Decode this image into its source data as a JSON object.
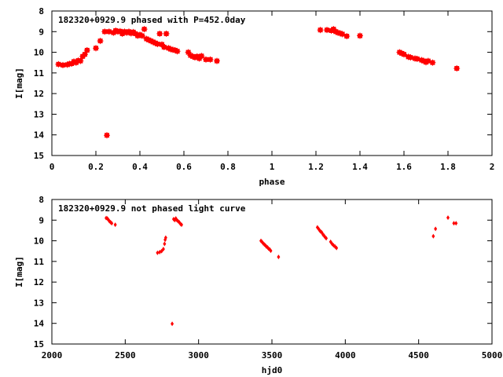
{
  "chart_data": [
    {
      "type": "scatter",
      "title": "182320+0929.9 phased with P=452.0day",
      "xlabel": "phase",
      "ylabel": "I[mag]",
      "xlim": [
        0,
        2
      ],
      "ylim": [
        15,
        8
      ],
      "y_inverted": true,
      "xticks": [
        "0",
        "0.2",
        "0.4",
        "0.6",
        "0.8",
        "1",
        "1.2",
        "1.4",
        "1.6",
        "1.8",
        "2"
      ],
      "yticks": [
        "8",
        "9",
        "10",
        "11",
        "12",
        "13",
        "14",
        "15"
      ],
      "grid": false,
      "marker_color": "#ff0000",
      "series": [
        {
          "points": [
            [
              0.03,
              10.58
            ],
            [
              0.05,
              10.62
            ],
            [
              0.07,
              10.6
            ],
            [
              0.08,
              10.56
            ],
            [
              0.09,
              10.55
            ],
            [
              0.1,
              10.45
            ],
            [
              0.11,
              10.5
            ],
            [
              0.12,
              10.4
            ],
            [
              0.13,
              10.42
            ],
            [
              0.14,
              10.2
            ],
            [
              0.15,
              10.1
            ],
            [
              0.16,
              9.9
            ],
            [
              0.2,
              9.8
            ],
            [
              0.22,
              9.45
            ],
            [
              0.24,
              9.0
            ],
            [
              0.25,
              14.02
            ],
            [
              0.26,
              9.0
            ],
            [
              0.28,
              9.05
            ],
            [
              0.29,
              8.95
            ],
            [
              0.3,
              9.0
            ],
            [
              0.31,
              8.98
            ],
            [
              0.32,
              9.1
            ],
            [
              0.33,
              9.0
            ],
            [
              0.34,
              9.05
            ],
            [
              0.35,
              9.0
            ],
            [
              0.36,
              9.08
            ],
            [
              0.37,
              9.02
            ],
            [
              0.38,
              9.1
            ],
            [
              0.39,
              9.2
            ],
            [
              0.4,
              9.15
            ],
            [
              0.41,
              9.2
            ],
            [
              0.42,
              8.88
            ],
            [
              0.43,
              9.35
            ],
            [
              0.44,
              9.4
            ],
            [
              0.45,
              9.45
            ],
            [
              0.46,
              9.5
            ],
            [
              0.47,
              9.55
            ],
            [
              0.48,
              9.6
            ],
            [
              0.49,
              9.1
            ],
            [
              0.5,
              9.62
            ],
            [
              0.51,
              9.75
            ],
            [
              0.52,
              9.1
            ],
            [
              0.53,
              9.8
            ],
            [
              0.54,
              9.85
            ],
            [
              0.55,
              9.88
            ],
            [
              0.56,
              9.9
            ],
            [
              0.57,
              9.95
            ],
            [
              0.62,
              10.0
            ],
            [
              0.63,
              10.15
            ],
            [
              0.64,
              10.2
            ],
            [
              0.65,
              10.25
            ],
            [
              0.66,
              10.2
            ],
            [
              0.67,
              10.3
            ],
            [
              0.68,
              10.18
            ],
            [
              0.7,
              10.35
            ],
            [
              0.72,
              10.35
            ],
            [
              0.75,
              10.42
            ],
            [
              1.22,
              8.92
            ],
            [
              1.25,
              8.92
            ],
            [
              1.27,
              8.95
            ],
            [
              1.28,
              8.88
            ],
            [
              1.29,
              9.0
            ],
            [
              1.3,
              9.05
            ],
            [
              1.31,
              9.08
            ],
            [
              1.32,
              9.12
            ],
            [
              1.34,
              9.22
            ],
            [
              1.4,
              9.2
            ],
            [
              1.58,
              10.0
            ],
            [
              1.59,
              10.05
            ],
            [
              1.6,
              10.1
            ],
            [
              1.62,
              10.22
            ],
            [
              1.63,
              10.25
            ],
            [
              1.65,
              10.3
            ],
            [
              1.66,
              10.32
            ],
            [
              1.68,
              10.38
            ],
            [
              1.69,
              10.42
            ],
            [
              1.7,
              10.48
            ],
            [
              1.71,
              10.42
            ],
            [
              1.73,
              10.5
            ],
            [
              1.84,
              10.78
            ]
          ]
        }
      ]
    },
    {
      "type": "scatter",
      "title": "182320+0929.9 not phased light curve",
      "xlabel": "hjd0",
      "ylabel": "I[mag]",
      "xlim": [
        2000,
        5000
      ],
      "ylim": [
        15,
        8
      ],
      "y_inverted": true,
      "xticks": [
        "2000",
        "2500",
        "3000",
        "3500",
        "4000",
        "4500",
        "5000"
      ],
      "yticks": [
        "8",
        "9",
        "10",
        "11",
        "12",
        "13",
        "14",
        "15"
      ],
      "grid": false,
      "marker_color": "#ff0000",
      "series": [
        {
          "points": [
            [
              2370,
              8.9
            ],
            [
              2378,
              8.92
            ],
            [
              2385,
              8.98
            ],
            [
              2392,
              9.05
            ],
            [
              2400,
              9.1
            ],
            [
              2408,
              9.15
            ],
            [
              2432,
              9.22
            ],
            [
              2720,
              10.58
            ],
            [
              2735,
              10.55
            ],
            [
              2748,
              10.5
            ],
            [
              2760,
              10.4
            ],
            [
              2768,
              10.15
            ],
            [
              2772,
              9.95
            ],
            [
              2776,
              9.85
            ],
            [
              2820,
              14.02
            ],
            [
              2830,
              8.95
            ],
            [
              2838,
              9.0
            ],
            [
              2845,
              8.92
            ],
            [
              2852,
              9.0
            ],
            [
              2860,
              9.05
            ],
            [
              2868,
              9.1
            ],
            [
              2876,
              9.18
            ],
            [
              2884,
              9.22
            ],
            [
              3425,
              10.0
            ],
            [
              3432,
              10.05
            ],
            [
              3440,
              10.12
            ],
            [
              3448,
              10.18
            ],
            [
              3455,
              10.22
            ],
            [
              3462,
              10.28
            ],
            [
              3470,
              10.32
            ],
            [
              3477,
              10.38
            ],
            [
              3485,
              10.42
            ],
            [
              3492,
              10.48
            ],
            [
              3545,
              10.78
            ],
            [
              3810,
              9.35
            ],
            [
              3818,
              9.42
            ],
            [
              3825,
              9.5
            ],
            [
              3832,
              9.55
            ],
            [
              3840,
              9.6
            ],
            [
              3848,
              9.7
            ],
            [
              3855,
              9.75
            ],
            [
              3862,
              9.82
            ],
            [
              3870,
              9.88
            ],
            [
              3900,
              10.05
            ],
            [
              3910,
              10.15
            ],
            [
              3920,
              10.22
            ],
            [
              3930,
              10.28
            ],
            [
              3940,
              10.35
            ],
            [
              4600,
              9.78
            ],
            [
              4615,
              9.42
            ],
            [
              4700,
              8.88
            ],
            [
              4740,
              9.15
            ],
            [
              4755,
              9.15
            ]
          ]
        }
      ]
    }
  ]
}
